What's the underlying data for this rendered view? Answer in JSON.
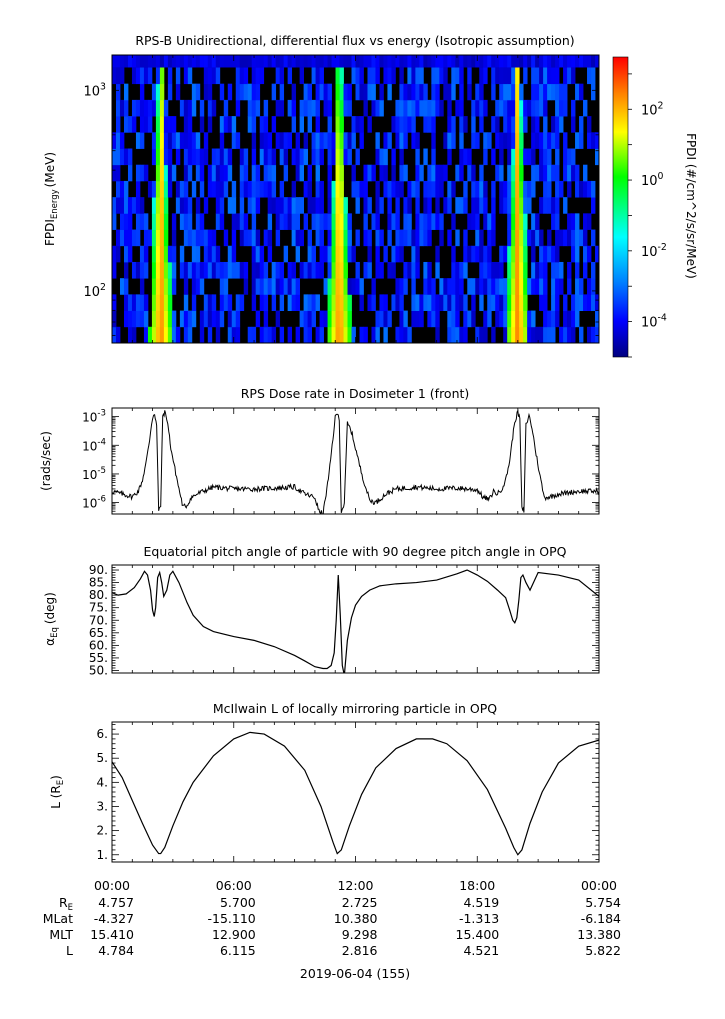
{
  "chart_data": [
    {
      "type": "heatmap",
      "title": "RPS-B  Unidirectional, differential flux vs energy (Isotropic assumption)",
      "ylabel_main": "FPDI",
      "ylabel_sub": "Energy",
      "ylabel_unit": "(MeV)",
      "yscale": "log",
      "ylim": [
        55,
        1500
      ],
      "yticks": [
        {
          "value": 100,
          "base": "10",
          "exp": "2"
        },
        {
          "value": 1000,
          "base": "10",
          "exp": "3"
        }
      ],
      "xlim": [
        0,
        24
      ],
      "x_units": "hours UT",
      "perigee_hours": [
        2.4,
        11.2,
        20.0
      ],
      "colorbar": {
        "label": "FPDI (#/cm^2/s/sr/MeV)",
        "scale": "log",
        "range": [
          1e-05,
          3000
        ],
        "ticks": [
          {
            "value": 0.0001,
            "base": "10",
            "exp": "-4"
          },
          {
            "value": 0.01,
            "base": "10",
            "exp": "-2"
          },
          {
            "value": 1,
            "base": "10",
            "exp": "0"
          },
          {
            "value": 100,
            "base": "10",
            "exp": "2"
          }
        ],
        "colors": [
          "#00007f",
          "#0000ff",
          "#0080ff",
          "#00ffff",
          "#00ff00",
          "#ffff00",
          "#ff8000",
          "#ff0000"
        ]
      }
    },
    {
      "type": "line",
      "title": "RPS  Dose rate in Dosimeter 1 (front)",
      "ylabel": "(rads/sec)",
      "yscale": "log",
      "ylim": [
        4e-07,
        0.002
      ],
      "yticks": [
        {
          "value": 1e-06,
          "base": "10",
          "exp": "-6"
        },
        {
          "value": 1e-05,
          "base": "10",
          "exp": "-5"
        },
        {
          "value": 0.0001,
          "base": "10",
          "exp": "-4"
        },
        {
          "value": 0.001,
          "base": "10",
          "exp": "-3"
        }
      ],
      "xlim": [
        0,
        24
      ],
      "x": [
        0,
        0.5,
        1.0,
        1.3,
        1.5,
        1.7,
        1.85,
        1.95,
        2.05,
        2.1,
        2.2,
        2.3,
        2.4,
        2.5,
        2.6,
        2.7,
        2.8,
        2.9,
        3.1,
        3.3,
        3.5,
        3.7,
        3.9,
        4.2,
        4.5,
        5,
        6,
        7,
        8,
        9,
        9.5,
        10.0,
        10.2,
        10.4,
        10.55,
        10.7,
        10.85,
        11.0,
        11.1,
        11.2,
        11.3,
        11.45,
        11.6,
        11.8,
        12.0,
        12.2,
        12.4,
        12.7,
        13.0,
        13.5,
        14,
        15,
        16,
        17,
        17.5,
        18,
        18.3,
        18.6,
        18.8,
        19.0,
        19.2,
        19.4,
        19.6,
        19.75,
        19.85,
        20.0,
        20.1,
        20.2,
        20.3,
        20.4,
        20.55,
        20.7,
        20.9,
        21.1,
        21.3,
        21.6,
        22,
        23,
        24
      ],
      "values": [
        2.5e-06,
        2e-06,
        1.6e-06,
        2.5e-06,
        6e-06,
        3e-05,
        0.00015,
        0.0006,
        0.0012,
        0.0013,
        0.0005,
        5e-07,
        8e-07,
        0.0011,
        0.0014,
        0.0009,
        0.0003,
        8e-05,
        1.5e-05,
        3e-06,
        7e-07,
        8e-07,
        1.5e-06,
        2e-06,
        2.5e-06,
        3.5e-06,
        3e-06,
        3e-06,
        3.2e-06,
        3.5e-06,
        2e-06,
        1.5e-06,
        5e-07,
        4e-07,
        2e-06,
        1e-05,
        0.0001,
        0.0009,
        0.0013,
        0.0008,
        5e-07,
        9e-07,
        0.0006,
        0.0003,
        8e-05,
        2e-05,
        6e-06,
        1.2e-06,
        1e-06,
        2e-06,
        3e-06,
        3.5e-06,
        3e-06,
        3.2e-06,
        3e-06,
        2.8e-06,
        1.5e-06,
        1.3e-06,
        2.5e-06,
        2e-06,
        3e-06,
        6e-06,
        3e-05,
        0.0002,
        0.0007,
        0.0014,
        0.0008,
        6e-07,
        5e-07,
        0.0005,
        0.0011,
        0.0004,
        5e-05,
        8e-06,
        1.5e-06,
        1.6e-06,
        2e-06,
        2.5e-06,
        2.5e-06
      ]
    },
    {
      "type": "line",
      "title": "Equatorial pitch angle of particle with 90 degree pitch angle in OPQ",
      "ylabel_main": "α",
      "ylabel_sub": "Eq",
      "ylabel_unit": "(deg)",
      "ylim": [
        49,
        92
      ],
      "yticks": [
        50,
        55,
        60,
        65,
        70,
        75,
        80,
        85,
        90
      ],
      "ytick_labels": [
        "50.",
        "55.",
        "60.",
        "65.",
        "70.",
        "75.",
        "80.",
        "85.",
        "90."
      ],
      "xlim": [
        0,
        24
      ],
      "x": [
        0,
        0.3,
        0.7,
        1.1,
        1.4,
        1.6,
        1.75,
        1.9,
        2.0,
        2.08,
        2.15,
        2.25,
        2.35,
        2.45,
        2.55,
        2.7,
        2.85,
        3.0,
        3.3,
        3.7,
        4.0,
        4.5,
        5,
        6,
        7,
        8,
        9,
        9.5,
        10.0,
        10.4,
        10.6,
        10.8,
        10.95,
        11.05,
        11.15,
        11.25,
        11.35,
        11.45,
        11.6,
        11.8,
        12.0,
        12.3,
        12.7,
        13.2,
        14,
        15,
        16,
        17,
        17.5,
        18,
        18.5,
        19.0,
        19.4,
        19.6,
        19.75,
        19.85,
        19.95,
        20.05,
        20.15,
        20.25,
        20.4,
        20.6,
        21,
        22,
        23,
        24
      ],
      "values": [
        81,
        80,
        80.5,
        83,
        86.5,
        89.5,
        88,
        82,
        74,
        71.5,
        75,
        87,
        89,
        85,
        79.5,
        82,
        88,
        89.5,
        85,
        77,
        72,
        67.5,
        65.5,
        63.5,
        62,
        59.5,
        56,
        53.8,
        51.5,
        50.8,
        50.8,
        52,
        57,
        70,
        88,
        72,
        52,
        48,
        62,
        71,
        76,
        79.5,
        82,
        83.7,
        84.5,
        85,
        86,
        88.5,
        90,
        88,
        85.5,
        82,
        79,
        74,
        70,
        69,
        71,
        78,
        87,
        88,
        85,
        82,
        89,
        88,
        86,
        79.5
      ]
    },
    {
      "type": "line",
      "title": "McIlwain L of locally mirroring particle in OPQ",
      "ylabel_main": "L (R",
      "ylabel_sub": "E",
      "ylabel_unit": ")",
      "ylim": [
        0.7,
        6.5
      ],
      "yticks": [
        1,
        2,
        3,
        4,
        5,
        6
      ],
      "ytick_labels": [
        "1.",
        "2.",
        "3.",
        "4.",
        "5.",
        "6."
      ],
      "xlim": [
        0,
        24
      ],
      "x": [
        0,
        0.5,
        1.0,
        1.5,
        2.0,
        2.3,
        2.4,
        2.6,
        3.0,
        3.5,
        4.0,
        5.0,
        6.0,
        6.8,
        7.5,
        8.5,
        9.5,
        10.3,
        10.9,
        11.1,
        11.3,
        11.7,
        12.3,
        13.0,
        14.0,
        15.0,
        15.8,
        16.5,
        17.5,
        18.5,
        19.4,
        19.8,
        20.0,
        20.2,
        20.6,
        21.2,
        22.0,
        23.0,
        24.0
      ],
      "values": [
        4.85,
        4.2,
        3.25,
        2.3,
        1.4,
        1.05,
        1.05,
        1.3,
        2.2,
        3.2,
        4.0,
        5.1,
        5.8,
        6.07,
        6.0,
        5.5,
        4.5,
        3.0,
        1.5,
        1.05,
        1.2,
        2.2,
        3.5,
        4.6,
        5.4,
        5.8,
        5.8,
        5.6,
        4.9,
        3.7,
        2.1,
        1.3,
        1.0,
        1.2,
        2.3,
        3.6,
        4.8,
        5.5,
        5.75
      ]
    }
  ],
  "xaxis": {
    "tick_labels": [
      "00:00",
      "06:00",
      "12:00",
      "18:00",
      "00:00"
    ],
    "tick_hours": [
      0,
      6,
      12,
      18,
      24
    ],
    "date_label": "2019-06-04 (155)"
  },
  "ephemeris": [
    {
      "label": "R",
      "label_sub": "E",
      "values": [
        "4.757",
        "5.700",
        "2.725",
        "4.519",
        "5.754"
      ]
    },
    {
      "label": "MLat",
      "label_sub": "",
      "values": [
        "-4.327",
        "-15.110",
        "10.380",
        "-1.313",
        "-6.184"
      ]
    },
    {
      "label": "MLT",
      "label_sub": "",
      "values": [
        "15.410",
        "12.900",
        "9.298",
        "15.400",
        "13.380"
      ]
    },
    {
      "label": "L",
      "label_sub": "",
      "values": [
        "4.784",
        "6.115",
        "2.816",
        "4.521",
        "5.822"
      ]
    }
  ]
}
